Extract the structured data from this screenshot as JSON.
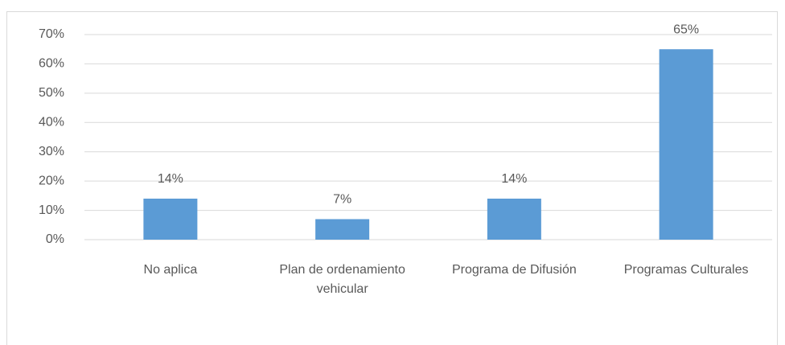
{
  "chart_data": {
    "type": "bar",
    "categories": [
      "No aplica",
      "Plan de ordenamiento vehicular",
      "Programa de Difusión",
      "Programas Culturales"
    ],
    "values": [
      14,
      7,
      14,
      65
    ],
    "value_labels": [
      "14%",
      "7%",
      "14%",
      "65%"
    ],
    "color": "#5b9bd5",
    "ylim": [
      0,
      70
    ],
    "yticks": [
      {
        "value": 0,
        "label": "0%"
      },
      {
        "value": 10,
        "label": "10%"
      },
      {
        "value": 20,
        "label": "20%"
      },
      {
        "value": 30,
        "label": "30%"
      },
      {
        "value": 40,
        "label": "40%"
      },
      {
        "value": 50,
        "label": "50%"
      },
      {
        "value": 60,
        "label": "60%"
      },
      {
        "value": 70,
        "label": "70%"
      }
    ],
    "grid": true
  }
}
